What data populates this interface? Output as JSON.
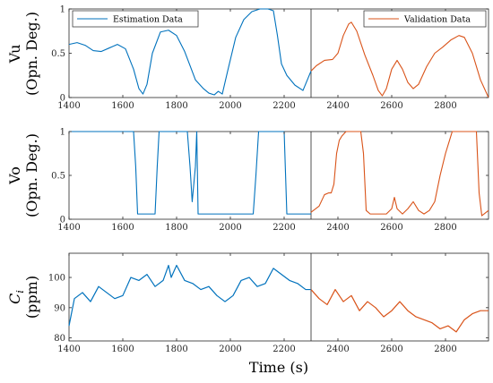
{
  "chart_data": [
    {
      "type": "line",
      "ylabel_line1": "Vu",
      "ylabel_line2": "(Opn. Deg.)",
      "xlim": [
        1400,
        2960
      ],
      "ylim": [
        0,
        1
      ],
      "xticks": [
        "1400",
        "1600",
        "1800",
        "2000",
        "2200",
        "2400",
        "2600",
        "2800"
      ],
      "yticks": [
        "0",
        "0.5",
        "1"
      ],
      "split_x": 2300,
      "grid": false,
      "legend": [
        "Estimation Data",
        "Validation Data"
      ],
      "series": [
        {
          "name": "Estimation Data",
          "color": "#0072BD",
          "x": [
            1400,
            1430,
            1460,
            1490,
            1520,
            1550,
            1580,
            1610,
            1640,
            1660,
            1675,
            1690,
            1710,
            1740,
            1770,
            1800,
            1830,
            1850,
            1870,
            1900,
            1920,
            1940,
            1955,
            1970,
            1990,
            2020,
            2050,
            2080,
            2110,
            2140,
            2160,
            2175,
            2190,
            2210,
            2240,
            2270,
            2300
          ],
          "y": [
            0.6,
            0.62,
            0.59,
            0.53,
            0.52,
            0.56,
            0.6,
            0.55,
            0.32,
            0.1,
            0.04,
            0.15,
            0.5,
            0.74,
            0.76,
            0.7,
            0.52,
            0.36,
            0.2,
            0.1,
            0.05,
            0.03,
            0.07,
            0.04,
            0.3,
            0.68,
            0.88,
            0.97,
            1.0,
            1.0,
            0.98,
            0.7,
            0.38,
            0.25,
            0.14,
            0.08,
            0.3
          ]
        },
        {
          "name": "Validation Data",
          "color": "#D95319",
          "x": [
            2300,
            2320,
            2350,
            2380,
            2400,
            2420,
            2440,
            2450,
            2470,
            2500,
            2530,
            2550,
            2565,
            2580,
            2600,
            2620,
            2640,
            2660,
            2680,
            2700,
            2730,
            2760,
            2790,
            2820,
            2850,
            2870,
            2900,
            2930,
            2960
          ],
          "y": [
            0.3,
            0.36,
            0.42,
            0.43,
            0.5,
            0.7,
            0.83,
            0.85,
            0.75,
            0.48,
            0.25,
            0.08,
            0.02,
            0.1,
            0.32,
            0.42,
            0.32,
            0.17,
            0.1,
            0.15,
            0.35,
            0.5,
            0.57,
            0.65,
            0.7,
            0.68,
            0.5,
            0.2,
            0.0
          ]
        }
      ]
    },
    {
      "type": "line",
      "ylabel_line1": "Vo",
      "ylabel_line2": "(Opn. Deg.)",
      "xlim": [
        1400,
        2960
      ],
      "ylim": [
        0,
        1
      ],
      "xticks": [
        "1400",
        "1600",
        "1800",
        "2000",
        "2200",
        "2400",
        "2600",
        "2800"
      ],
      "yticks": [
        "0",
        "0.5",
        "1"
      ],
      "split_x": 2300,
      "grid": false,
      "series": [
        {
          "name": "Estimation Data",
          "color": "#0072BD",
          "x": [
            1400,
            1640,
            1648,
            1655,
            1720,
            1728,
            1735,
            1840,
            1850,
            1858,
            1870,
            1875,
            1880,
            2085,
            2095,
            2105,
            2200,
            2210,
            2300
          ],
          "y": [
            1.0,
            1.0,
            0.6,
            0.06,
            0.06,
            0.6,
            1.0,
            1.0,
            0.6,
            0.2,
            0.6,
            1.0,
            0.06,
            0.06,
            0.5,
            1.0,
            1.0,
            0.06,
            0.06
          ]
        },
        {
          "name": "Validation Data",
          "color": "#D95319",
          "x": [
            2300,
            2330,
            2350,
            2365,
            2375,
            2385,
            2395,
            2405,
            2415,
            2430,
            2440,
            2450,
            2470,
            2485,
            2495,
            2505,
            2520,
            2580,
            2600,
            2610,
            2620,
            2640,
            2660,
            2680,
            2700,
            2720,
            2740,
            2760,
            2780,
            2800,
            2815,
            2825,
            2835,
            2900,
            2915,
            2925,
            2935,
            2960
          ],
          "y": [
            0.08,
            0.15,
            0.28,
            0.3,
            0.3,
            0.4,
            0.75,
            0.9,
            0.95,
            1.0,
            1.0,
            1.0,
            1.0,
            1.0,
            0.75,
            0.1,
            0.06,
            0.06,
            0.12,
            0.25,
            0.12,
            0.06,
            0.12,
            0.2,
            0.1,
            0.06,
            0.1,
            0.2,
            0.5,
            0.75,
            0.9,
            1.0,
            1.0,
            1.0,
            1.0,
            0.3,
            0.04,
            0.1
          ]
        }
      ]
    },
    {
      "type": "line",
      "ylabel_math": "C",
      "ylabel_sub": "i",
      "ylabel_line2": "(ppm)",
      "xlabel": "Time (s)",
      "xlim": [
        1400,
        2960
      ],
      "ylim": [
        79,
        108
      ],
      "xticks": [
        "1400",
        "1600",
        "1800",
        "2000",
        "2200",
        "2400",
        "2600",
        "2800"
      ],
      "yticks": [
        "80",
        "90",
        "100"
      ],
      "split_x": 2300,
      "grid": false,
      "series": [
        {
          "name": "Estimation Data",
          "color": "#0072BD",
          "x": [
            1400,
            1420,
            1450,
            1480,
            1510,
            1540,
            1570,
            1600,
            1630,
            1660,
            1690,
            1720,
            1750,
            1770,
            1780,
            1800,
            1830,
            1860,
            1890,
            1920,
            1950,
            1980,
            2010,
            2040,
            2070,
            2100,
            2130,
            2160,
            2190,
            2220,
            2250,
            2280,
            2300
          ],
          "y": [
            84,
            93,
            95,
            92,
            97,
            95,
            93,
            94,
            100,
            99,
            101,
            97,
            99,
            104,
            100,
            104,
            99,
            98,
            96,
            97,
            94,
            92,
            94,
            99,
            100,
            97,
            98,
            103,
            101,
            99,
            98,
            96,
            96
          ]
        },
        {
          "name": "Validation Data",
          "color": "#D95319",
          "x": [
            2300,
            2330,
            2360,
            2390,
            2420,
            2450,
            2480,
            2510,
            2540,
            2570,
            2600,
            2630,
            2660,
            2690,
            2720,
            2750,
            2780,
            2810,
            2840,
            2870,
            2900,
            2930,
            2960
          ],
          "y": [
            96,
            93,
            91,
            96,
            92,
            94,
            89,
            92,
            90,
            87,
            89,
            92,
            89,
            87,
            86,
            85,
            83,
            84,
            82,
            86,
            88,
            89,
            89
          ]
        }
      ]
    }
  ]
}
